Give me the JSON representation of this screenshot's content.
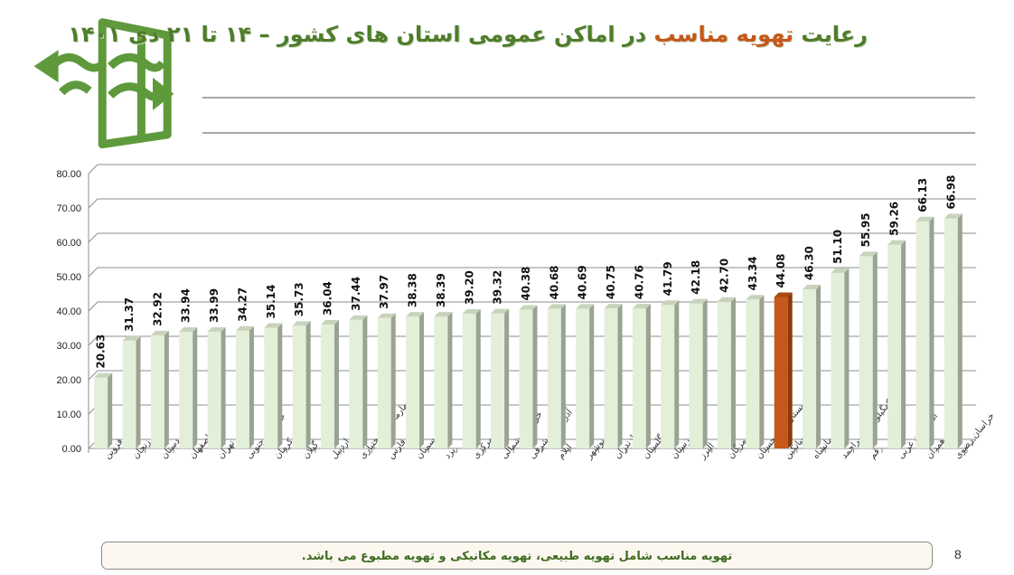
{
  "header": {
    "title_prefix": "رعایت ",
    "title_highlight": "تهویه مناسب",
    "title_suffix": " در اماکن عمومی استان های کشور  –  ۱۴ تا ۲۱ دی ۱۴۰۱",
    "logo_icon": "ventilation-window-icon"
  },
  "footer": {
    "note": "تهویه مناسب شامل تهویه طبیعی، تهویه مکانیکی و تهویه مطبوع می باشد.",
    "page_number": "8"
  },
  "colors": {
    "bar_fill": "#e3efd9",
    "bar_side": "#9aa392",
    "bar_top": "#c8d3bc",
    "highlight_fill": "#c5581a",
    "highlight_side": "#8a3a10",
    "title_green": "#4f7d2b",
    "title_orange": "#c5581a",
    "grid": "#8c8c8c"
  },
  "chart_data": {
    "type": "bar",
    "title": "رعایت تهویه مناسب در اماکن عمومی استان های کشور – ۱۴ تا ۲۱ دی ۱۴۰۱",
    "xlabel": "",
    "ylabel": "",
    "ylim": [
      0,
      80
    ],
    "yticks": [
      "0.00",
      "10.00",
      "20.00",
      "30.00",
      "40.00",
      "50.00",
      "60.00",
      "70.00",
      "80.00"
    ],
    "grid": true,
    "legend": null,
    "categories": [
      "قزوین",
      "زنجان",
      "کردستان",
      "اصفهان",
      "تهران",
      "خراسان جنوبی",
      "کرمان",
      "گیلان",
      "اردبیل",
      "چهارمحال و بختیاری",
      "فارس",
      "سمنان",
      "یزد",
      "مرکزی",
      "خراسان شمالی",
      "آذربایجان شرقی",
      "ایلام",
      "بوشهر",
      "مازندران",
      "گلستان",
      "خوزستان",
      "البرز",
      "هرمزگان",
      "سیستان و بلوچستان",
      "میانگین",
      "کرمانشاه",
      "کهگیلویه و بویراحمد",
      "قم",
      "آذربایجان غربی",
      "همدان",
      "خراسان رضوی"
    ],
    "values": [
      20.63,
      31.37,
      32.92,
      33.94,
      33.99,
      34.27,
      35.14,
      35.73,
      36.04,
      37.44,
      37.97,
      38.38,
      38.39,
      39.2,
      39.32,
      40.38,
      40.68,
      40.69,
      40.75,
      40.76,
      41.79,
      42.18,
      42.7,
      43.34,
      44.08,
      46.3,
      51.1,
      55.95,
      59.26,
      66.13,
      66.98
    ],
    "value_labels": [
      "20.63",
      "31.37",
      "32.92",
      "33.94",
      "33.99",
      "34.27",
      "35.14",
      "35.73",
      "36.04",
      "37.44",
      "37.97",
      "38.38",
      "38.39",
      "39.20",
      "39.32",
      "40.38",
      "40.68",
      "40.69",
      "40.75",
      "40.76",
      "41.79",
      "42.18",
      "42.70",
      "43.34",
      "44.08",
      "46.30",
      "51.10",
      "55.95",
      "59.26",
      "66.13",
      "66.98"
    ],
    "highlight_index": 24,
    "highlight_label": "میانگین"
  }
}
